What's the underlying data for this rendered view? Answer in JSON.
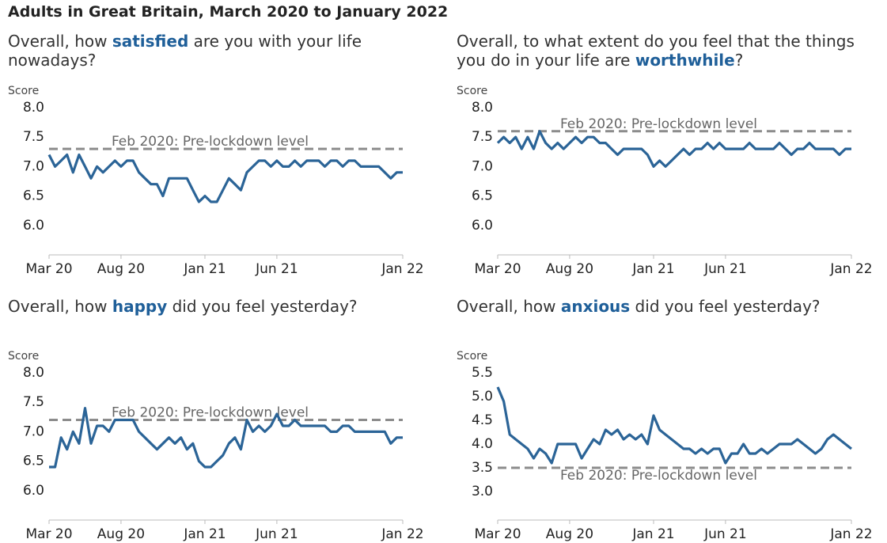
{
  "title": "Adults in Great Britain, March 2020 to January 2022",
  "chart_data": [
    {
      "type": "line",
      "question": {
        "before": "Overall, how ",
        "highlight": "satisfied",
        "after": " are you with your life nowadays?"
      },
      "y_label": "Score",
      "categories": [
        "Mar 20",
        null,
        null,
        null,
        null,
        null,
        null,
        null,
        null,
        null,
        null,
        null,
        "Aug 20",
        null,
        null,
        null,
        null,
        null,
        null,
        null,
        null,
        null,
        null,
        null,
        null,
        null,
        "Jan 21",
        null,
        null,
        null,
        null,
        null,
        null,
        null,
        null,
        null,
        null,
        null,
        "Jun 21",
        null,
        null,
        null,
        null,
        null,
        null,
        null,
        null,
        null,
        null,
        null,
        null,
        null,
        null,
        null,
        null,
        null,
        null,
        null,
        null,
        "Jan 22"
      ],
      "series": [
        {
          "color": "#2b6497",
          "values": [
            7.2,
            7.0,
            7.1,
            7.2,
            6.9,
            7.2,
            7.0,
            6.8,
            7.0,
            6.9,
            7.0,
            7.1,
            7.0,
            7.1,
            7.1,
            6.9,
            6.8,
            6.7,
            6.7,
            6.5,
            6.8,
            6.8,
            6.8,
            6.8,
            6.6,
            6.4,
            6.5,
            6.4,
            6.4,
            6.6,
            6.8,
            6.7,
            6.6,
            6.9,
            7.0,
            7.1,
            7.1,
            7.0,
            7.1,
            7.0,
            7.0,
            7.1,
            7.0,
            7.1,
            7.1,
            7.1,
            7.0,
            7.1,
            7.1,
            7.0,
            7.1,
            7.1,
            7.0,
            7.0,
            7.0,
            7.0,
            6.9,
            6.8,
            6.9,
            6.9
          ]
        }
      ],
      "reference": {
        "value": 7.3,
        "label": "Feb 2020: Pre-lockdown level",
        "color": "#8c8c8c"
      },
      "ylim": [
        5.5,
        8.0
      ],
      "yticks": [
        {
          "value": 6,
          "label": "6.0"
        },
        6.5,
        {
          "value": 7,
          "label": "7.0"
        },
        7.5,
        {
          "value": 8,
          "label": "8.0"
        }
      ]
    },
    {
      "type": "line",
      "question": {
        "before": "Overall, to what extent do you feel that the things you do in your life are ",
        "highlight": "worthwhile",
        "after": "?"
      },
      "y_label": "Score",
      "categories": [
        "Mar 20",
        null,
        null,
        null,
        null,
        null,
        null,
        null,
        null,
        null,
        null,
        null,
        "Aug 20",
        null,
        null,
        null,
        null,
        null,
        null,
        null,
        null,
        null,
        null,
        null,
        null,
        null,
        "Jan 21",
        null,
        null,
        null,
        null,
        null,
        null,
        null,
        null,
        null,
        null,
        null,
        "Jun 21",
        null,
        null,
        null,
        null,
        null,
        null,
        null,
        null,
        null,
        null,
        null,
        null,
        null,
        null,
        null,
        null,
        null,
        null,
        null,
        null,
        "Jan 22"
      ],
      "series": [
        {
          "color": "#2b6497",
          "values": [
            7.4,
            7.5,
            7.4,
            7.5,
            7.3,
            7.5,
            7.3,
            7.6,
            7.4,
            7.3,
            7.4,
            7.3,
            7.4,
            7.5,
            7.4,
            7.5,
            7.5,
            7.4,
            7.4,
            7.3,
            7.2,
            7.3,
            7.3,
            7.3,
            7.3,
            7.2,
            7.0,
            7.1,
            7.0,
            7.1,
            7.2,
            7.3,
            7.2,
            7.3,
            7.3,
            7.4,
            7.3,
            7.4,
            7.3,
            7.3,
            7.3,
            7.3,
            7.4,
            7.3,
            7.3,
            7.3,
            7.3,
            7.4,
            7.3,
            7.2,
            7.3,
            7.3,
            7.4,
            7.3,
            7.3,
            7.3,
            7.3,
            7.2,
            7.3,
            7.3
          ]
        }
      ],
      "reference": {
        "value": 7.6,
        "label": "Feb 2020: Pre-lockdown level",
        "color": "#8c8c8c"
      },
      "ylim": [
        5.5,
        8.0
      ],
      "yticks": [
        {
          "value": 6,
          "label": "6.0"
        },
        6.5,
        {
          "value": 7,
          "label": "7.0"
        },
        7.5,
        {
          "value": 8,
          "label": "8.0"
        }
      ]
    },
    {
      "type": "line",
      "question": {
        "before": "Overall, how ",
        "highlight": "happy",
        "after": " did you feel yesterday?"
      },
      "y_label": "Score",
      "categories": [
        "Mar 20",
        null,
        null,
        null,
        null,
        null,
        null,
        null,
        null,
        null,
        null,
        null,
        "Aug 20",
        null,
        null,
        null,
        null,
        null,
        null,
        null,
        null,
        null,
        null,
        null,
        null,
        null,
        "Jan 21",
        null,
        null,
        null,
        null,
        null,
        null,
        null,
        null,
        null,
        null,
        null,
        "Jun 21",
        null,
        null,
        null,
        null,
        null,
        null,
        null,
        null,
        null,
        null,
        null,
        null,
        null,
        null,
        null,
        null,
        null,
        null,
        null,
        null,
        "Jan 22"
      ],
      "series": [
        {
          "color": "#2b6497",
          "values": [
            6.4,
            6.4,
            6.9,
            6.7,
            7.0,
            6.8,
            7.4,
            6.8,
            7.1,
            7.1,
            7.0,
            7.2,
            7.2,
            7.2,
            7.2,
            7.0,
            6.9,
            6.8,
            6.7,
            6.8,
            6.9,
            6.8,
            6.9,
            6.7,
            6.8,
            6.5,
            6.4,
            6.4,
            6.5,
            6.6,
            6.8,
            6.9,
            6.7,
            7.2,
            7.0,
            7.1,
            7.0,
            7.1,
            7.3,
            7.1,
            7.1,
            7.2,
            7.1,
            7.1,
            7.1,
            7.1,
            7.1,
            7.0,
            7.0,
            7.1,
            7.1,
            7.0,
            7.0,
            7.0,
            7.0,
            7.0,
            7.0,
            6.8,
            6.9,
            6.9
          ]
        }
      ],
      "reference": {
        "value": 7.2,
        "label": "Feb 2020: Pre-lockdown level",
        "color": "#8c8c8c"
      },
      "ylim": [
        5.5,
        8.0
      ],
      "yticks": [
        {
          "value": 6,
          "label": "6.0"
        },
        6.5,
        {
          "value": 7,
          "label": "7.0"
        },
        7.5,
        {
          "value": 8,
          "label": "8.0"
        }
      ]
    },
    {
      "type": "line",
      "question": {
        "before": "Overall, how ",
        "highlight": "anxious",
        "after": " did you feel yesterday?"
      },
      "y_label": "Score",
      "categories": [
        "Mar 20",
        null,
        null,
        null,
        null,
        null,
        null,
        null,
        null,
        null,
        null,
        null,
        "Aug 20",
        null,
        null,
        null,
        null,
        null,
        null,
        null,
        null,
        null,
        null,
        null,
        null,
        null,
        "Jan 21",
        null,
        null,
        null,
        null,
        null,
        null,
        null,
        null,
        null,
        null,
        null,
        "Jun 21",
        null,
        null,
        null,
        null,
        null,
        null,
        null,
        null,
        null,
        null,
        null,
        null,
        null,
        null,
        null,
        null,
        null,
        null,
        null,
        null,
        "Jan 22"
      ],
      "series": [
        {
          "color": "#2b6497",
          "values": [
            5.2,
            4.9,
            4.2,
            4.1,
            4.0,
            3.9,
            3.7,
            3.9,
            3.8,
            3.6,
            4.0,
            4.0,
            4.0,
            4.0,
            3.7,
            3.9,
            4.1,
            4.0,
            4.3,
            4.2,
            4.3,
            4.1,
            4.2,
            4.1,
            4.2,
            4.0,
            4.6,
            4.3,
            4.2,
            4.1,
            4.0,
            3.9,
            3.9,
            3.8,
            3.9,
            3.8,
            3.9,
            3.9,
            3.6,
            3.8,
            3.8,
            4.0,
            3.8,
            3.8,
            3.9,
            3.8,
            3.9,
            4.0,
            4.0,
            4.0,
            4.1,
            4.0,
            3.9,
            3.8,
            3.9,
            4.1,
            4.2,
            4.1,
            4.0,
            3.9
          ]
        }
      ],
      "reference": {
        "value": 3.5,
        "label": "Feb 2020: Pre-lockdown level",
        "color": "#8c8c8c"
      },
      "ylim": [
        2.4,
        5.5
      ],
      "yticks": [
        {
          "value": 3,
          "label": "3.0"
        },
        3.5,
        {
          "value": 4,
          "label": "4.0"
        },
        4.5,
        {
          "value": 5,
          "label": "5.0"
        },
        5.5
      ]
    }
  ]
}
